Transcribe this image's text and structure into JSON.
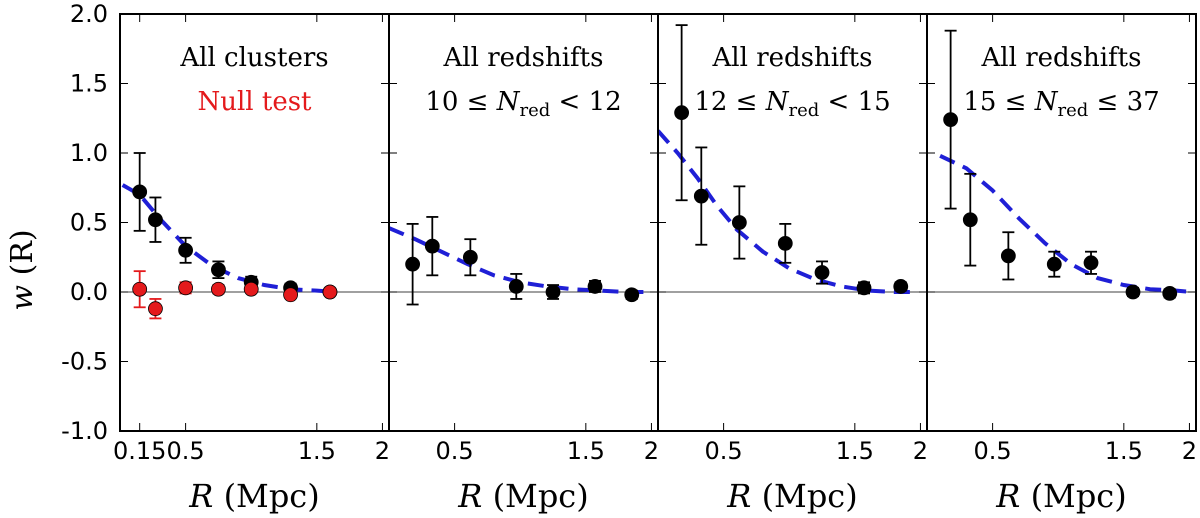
{
  "chart_data": [
    {
      "type": "scatter",
      "panel": "All clusters",
      "title": "All clusters",
      "subtitle": "Null test",
      "xlabel_var": "R",
      "xlabel_unit": "(Mpc)",
      "ylabel_var": "w",
      "ylabel_unit": "(R)",
      "xlim": [
        0.0,
        2.05
      ],
      "ylim": [
        -1.0,
        2.0
      ],
      "xticks": [
        0.15,
        0.5,
        1.5,
        2.0
      ],
      "yticks": [
        -1.0,
        -0.5,
        0.0,
        0.5,
        1.0,
        1.5,
        2.0
      ],
      "series": [
        {
          "name": "Clusters",
          "color": "#000000",
          "x": [
            0.15,
            0.27,
            0.5,
            0.75,
            1.0,
            1.3,
            1.6
          ],
          "y": [
            0.72,
            0.52,
            0.3,
            0.16,
            0.07,
            0.03,
            0.0
          ],
          "err": [
            0.28,
            0.16,
            0.09,
            0.06,
            0.04,
            0.03,
            0.02
          ]
        },
        {
          "name": "Null test",
          "color": "#e41a1c",
          "x": [
            0.15,
            0.27,
            0.5,
            0.75,
            1.0,
            1.3,
            1.6
          ],
          "y": [
            0.02,
            -0.12,
            0.03,
            0.02,
            0.02,
            -0.02,
            0.0
          ],
          "err": [
            0.13,
            0.07,
            0.04,
            0.03,
            0.02,
            0.02,
            0.02
          ]
        }
      ],
      "model": {
        "color": "#1f1fd6",
        "x": [
          0.02,
          0.15,
          0.3,
          0.5,
          0.7,
          0.9,
          1.1,
          1.3,
          1.5,
          1.65
        ],
        "y": [
          0.77,
          0.7,
          0.53,
          0.33,
          0.19,
          0.1,
          0.05,
          0.02,
          0.01,
          0.0
        ]
      }
    },
    {
      "type": "scatter",
      "panel": "10 <= N_red < 12",
      "title": "All redshifts",
      "subtitle_lhs": "10 ≤ ",
      "subtitle_var": "N",
      "subtitle_sub": "red",
      "subtitle_rhs": " < 12",
      "xlabel_var": "R",
      "xlabel_unit": "(Mpc)",
      "xlim": [
        0.0,
        2.05
      ],
      "ylim": [
        -1.0,
        2.0
      ],
      "xticks": [
        0.5,
        1.5,
        2.0
      ],
      "series": [
        {
          "name": "Clusters",
          "color": "#000000",
          "x": [
            0.18,
            0.33,
            0.62,
            0.97,
            1.25,
            1.57,
            1.85
          ],
          "y": [
            0.2,
            0.33,
            0.25,
            0.04,
            0.0,
            0.04,
            -0.02
          ],
          "err": [
            0.29,
            0.21,
            0.13,
            0.09,
            0.05,
            0.04,
            0.03
          ]
        }
      ],
      "model": {
        "color": "#1f1fd6",
        "x": [
          0.0,
          0.2,
          0.4,
          0.6,
          0.8,
          1.0,
          1.2,
          1.4,
          1.6,
          1.8,
          1.95
        ],
        "y": [
          0.46,
          0.38,
          0.29,
          0.2,
          0.12,
          0.07,
          0.04,
          0.02,
          0.01,
          0.0,
          0.0
        ]
      }
    },
    {
      "type": "scatter",
      "panel": "12 <= N_red < 15",
      "title": "All redshifts",
      "subtitle_lhs": "12 ≤ ",
      "subtitle_var": "N",
      "subtitle_sub": "red",
      "subtitle_rhs": " < 15",
      "xlabel_var": "R",
      "xlabel_unit": "(Mpc)",
      "xlim": [
        0.0,
        2.05
      ],
      "ylim": [
        -1.0,
        2.0
      ],
      "xticks": [
        0.5,
        1.5,
        2.0
      ],
      "series": [
        {
          "name": "Clusters",
          "color": "#000000",
          "x": [
            0.18,
            0.33,
            0.62,
            0.97,
            1.25,
            1.57,
            1.85
          ],
          "y": [
            1.29,
            0.69,
            0.5,
            0.35,
            0.14,
            0.03,
            0.04
          ],
          "err": [
            0.63,
            0.35,
            0.26,
            0.14,
            0.08,
            0.04,
            0.03
          ]
        }
      ],
      "model": {
        "color": "#1f1fd6",
        "x": [
          0.0,
          0.15,
          0.3,
          0.45,
          0.6,
          0.8,
          1.0,
          1.2,
          1.4,
          1.6,
          1.8,
          1.95
        ],
        "y": [
          1.16,
          1.0,
          0.82,
          0.62,
          0.45,
          0.29,
          0.17,
          0.09,
          0.04,
          0.01,
          0.0,
          0.0
        ]
      }
    },
    {
      "type": "scatter",
      "panel": "15 <= N_red <= 37",
      "title": "All redshifts",
      "subtitle_lhs": "15 ≤ ",
      "subtitle_var": "N",
      "subtitle_sub": "red",
      "subtitle_rhs": " ≤ 37",
      "xlabel_var": "R",
      "xlabel_unit": "(Mpc)",
      "xlim": [
        0.0,
        2.05
      ],
      "ylim": [
        -1.0,
        2.0
      ],
      "xticks": [
        0.5,
        1.5,
        2.0
      ],
      "series": [
        {
          "name": "Clusters",
          "color": "#000000",
          "x": [
            0.18,
            0.33,
            0.62,
            0.97,
            1.25,
            1.57,
            1.85
          ],
          "y": [
            1.24,
            0.52,
            0.26,
            0.2,
            0.21,
            0.0,
            -0.01
          ],
          "err": [
            0.64,
            0.33,
            0.17,
            0.09,
            0.08,
            0.03,
            0.03
          ]
        }
      ],
      "model": {
        "color": "#1f1fd6",
        "x": [
          0.1,
          0.3,
          0.5,
          0.7,
          0.9,
          1.1,
          1.3,
          1.5,
          1.7,
          1.9,
          2.02
        ],
        "y": [
          0.98,
          0.89,
          0.73,
          0.53,
          0.35,
          0.2,
          0.1,
          0.05,
          0.02,
          0.01,
          0.0
        ]
      }
    }
  ]
}
